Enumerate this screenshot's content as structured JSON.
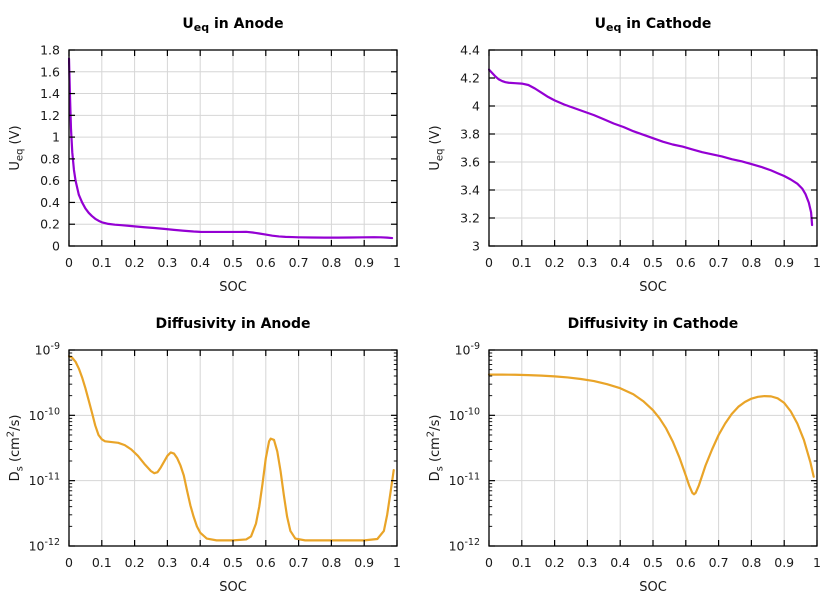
{
  "figure": {
    "background": "#ffffff",
    "style": {
      "grid_color": "#d6d6d6",
      "axis_color": "#000000",
      "text_color": "#1a1a1a",
      "purple": "#9400d3",
      "orange": "#e9a428"
    }
  },
  "chart_data": [
    {
      "id": "ueq-anode",
      "type": "line",
      "title_parts": [
        {
          "t": "U"
        },
        {
          "t": "eq",
          "shift": "sub"
        },
        {
          "t": " in Anode"
        }
      ],
      "title_text": "U_eq in Anode",
      "xlabel": "SOC",
      "ylabel_parts": [
        {
          "t": "U"
        },
        {
          "t": "eq",
          "shift": "sub"
        },
        {
          "t": " (V)"
        }
      ],
      "ylabel_text": "U_eq (V)",
      "xlim": [
        0,
        1
      ],
      "x_ticks": {
        "values": [
          0,
          0.1,
          0.2,
          0.3,
          0.4,
          0.5,
          0.6,
          0.7,
          0.8,
          0.9,
          1
        ],
        "labels": [
          "0",
          "0.1",
          "0.2",
          "0.3",
          "0.4",
          "0.5",
          "0.6",
          "0.7",
          "0.8",
          "0.9",
          "1"
        ]
      },
      "yscale": "linear",
      "ylim": [
        0,
        1.8
      ],
      "y_ticks": {
        "values": [
          0,
          0.2,
          0.4,
          0.6,
          0.8,
          1,
          1.2,
          1.4,
          1.6,
          1.8
        ],
        "labels": [
          "0",
          "0.2",
          "0.4",
          "0.6",
          "0.8",
          "1",
          "1.2",
          "1.4",
          "1.6",
          "1.8"
        ]
      },
      "grid": true,
      "line_color": "#9400d3",
      "points": [
        [
          0,
          1.72
        ],
        [
          0.003,
          1.38
        ],
        [
          0.006,
          1.08
        ],
        [
          0.01,
          0.86
        ],
        [
          0.015,
          0.7
        ],
        [
          0.02,
          0.6
        ],
        [
          0.03,
          0.47
        ],
        [
          0.04,
          0.4
        ],
        [
          0.05,
          0.345
        ],
        [
          0.06,
          0.305
        ],
        [
          0.07,
          0.275
        ],
        [
          0.08,
          0.25
        ],
        [
          0.09,
          0.232
        ],
        [
          0.1,
          0.218
        ],
        [
          0.12,
          0.203
        ],
        [
          0.14,
          0.196
        ],
        [
          0.16,
          0.191
        ],
        [
          0.18,
          0.186
        ],
        [
          0.2,
          0.18
        ],
        [
          0.23,
          0.172
        ],
        [
          0.26,
          0.165
        ],
        [
          0.29,
          0.157
        ],
        [
          0.32,
          0.148
        ],
        [
          0.35,
          0.14
        ],
        [
          0.38,
          0.133
        ],
        [
          0.4,
          0.13
        ],
        [
          0.44,
          0.129
        ],
        [
          0.48,
          0.129
        ],
        [
          0.52,
          0.129
        ],
        [
          0.54,
          0.13
        ],
        [
          0.56,
          0.124
        ],
        [
          0.58,
          0.115
        ],
        [
          0.6,
          0.105
        ],
        [
          0.62,
          0.095
        ],
        [
          0.64,
          0.088
        ],
        [
          0.66,
          0.084
        ],
        [
          0.68,
          0.082
        ],
        [
          0.7,
          0.08
        ],
        [
          0.74,
          0.078
        ],
        [
          0.78,
          0.077
        ],
        [
          0.82,
          0.077
        ],
        [
          0.86,
          0.078
        ],
        [
          0.9,
          0.08
        ],
        [
          0.93,
          0.081
        ],
        [
          0.95,
          0.08
        ],
        [
          0.97,
          0.077
        ],
        [
          0.985,
          0.073
        ]
      ]
    },
    {
      "id": "ueq-cathode",
      "type": "line",
      "title_parts": [
        {
          "t": "U"
        },
        {
          "t": "eq",
          "shift": "sub"
        },
        {
          "t": " in Cathode"
        }
      ],
      "title_text": "U_eq in Cathode",
      "xlabel": "SOC",
      "ylabel_parts": [
        {
          "t": "U"
        },
        {
          "t": "eq",
          "shift": "sub"
        },
        {
          "t": " (V)"
        }
      ],
      "ylabel_text": "U_eq (V)",
      "xlim": [
        0,
        1
      ],
      "x_ticks": {
        "values": [
          0,
          0.1,
          0.2,
          0.3,
          0.4,
          0.5,
          0.6,
          0.7,
          0.8,
          0.9,
          1
        ],
        "labels": [
          "0",
          "0.1",
          "0.2",
          "0.3",
          "0.4",
          "0.5",
          "0.6",
          "0.7",
          "0.8",
          "0.9",
          "1"
        ]
      },
      "yscale": "linear",
      "ylim": [
        3,
        4.4
      ],
      "y_ticks": {
        "values": [
          3,
          3.2,
          3.4,
          3.6,
          3.8,
          4,
          4.2,
          4.4
        ],
        "labels": [
          "3",
          "3.2",
          "3.4",
          "3.6",
          "3.8",
          "4",
          "4.2",
          "4.4"
        ]
      },
      "grid": true,
      "line_color": "#9400d3",
      "points": [
        [
          0,
          4.26
        ],
        [
          0.01,
          4.235
        ],
        [
          0.02,
          4.21
        ],
        [
          0.03,
          4.19
        ],
        [
          0.04,
          4.178
        ],
        [
          0.05,
          4.17
        ],
        [
          0.06,
          4.166
        ],
        [
          0.08,
          4.163
        ],
        [
          0.1,
          4.16
        ],
        [
          0.12,
          4.15
        ],
        [
          0.14,
          4.125
        ],
        [
          0.16,
          4.095
        ],
        [
          0.18,
          4.065
        ],
        [
          0.2,
          4.04
        ],
        [
          0.23,
          4.01
        ],
        [
          0.26,
          3.985
        ],
        [
          0.29,
          3.96
        ],
        [
          0.32,
          3.935
        ],
        [
          0.35,
          3.905
        ],
        [
          0.38,
          3.875
        ],
        [
          0.41,
          3.85
        ],
        [
          0.44,
          3.82
        ],
        [
          0.47,
          3.795
        ],
        [
          0.5,
          3.77
        ],
        [
          0.53,
          3.745
        ],
        [
          0.56,
          3.725
        ],
        [
          0.59,
          3.71
        ],
        [
          0.62,
          3.69
        ],
        [
          0.65,
          3.67
        ],
        [
          0.68,
          3.655
        ],
        [
          0.71,
          3.64
        ],
        [
          0.74,
          3.62
        ],
        [
          0.77,
          3.605
        ],
        [
          0.8,
          3.585
        ],
        [
          0.83,
          3.565
        ],
        [
          0.86,
          3.54
        ],
        [
          0.88,
          3.52
        ],
        [
          0.9,
          3.5
        ],
        [
          0.92,
          3.475
        ],
        [
          0.94,
          3.445
        ],
        [
          0.955,
          3.41
        ],
        [
          0.965,
          3.37
        ],
        [
          0.975,
          3.31
        ],
        [
          0.982,
          3.24
        ],
        [
          0.985,
          3.15
        ]
      ]
    },
    {
      "id": "diffusivity-anode",
      "type": "line",
      "title_parts": [
        {
          "t": "Diffusivity in Anode"
        }
      ],
      "title_text": "Diffusivity in Anode",
      "xlabel": "SOC",
      "ylabel_parts": [
        {
          "t": "D"
        },
        {
          "t": "s",
          "shift": "sub"
        },
        {
          "t": " (cm"
        },
        {
          "t": "2",
          "shift": "sup"
        },
        {
          "t": "/s)"
        }
      ],
      "ylabel_text": "D_s (cm^2/s)",
      "xlim": [
        0,
        1
      ],
      "x_ticks": {
        "values": [
          0,
          0.1,
          0.2,
          0.3,
          0.4,
          0.5,
          0.6,
          0.7,
          0.8,
          0.9,
          1
        ],
        "labels": [
          "0",
          "0.1",
          "0.2",
          "0.3",
          "0.4",
          "0.5",
          "0.6",
          "0.7",
          "0.8",
          "0.9",
          "1"
        ]
      },
      "yscale": "log",
      "ylim": [
        1e-12,
        1e-09
      ],
      "y_ticks": {
        "exponents": [
          -12,
          -11,
          -10,
          -9
        ]
      },
      "grid": true,
      "line_color": "#e9a428",
      "points": [
        [
          0,
          8e-10
        ],
        [
          0.01,
          7.6e-10
        ],
        [
          0.02,
          6.6e-10
        ],
        [
          0.03,
          5.2e-10
        ],
        [
          0.04,
          3.8e-10
        ],
        [
          0.05,
          2.6e-10
        ],
        [
          0.06,
          1.7e-10
        ],
        [
          0.07,
          1.1e-10
        ],
        [
          0.08,
          7e-11
        ],
        [
          0.09,
          5e-11
        ],
        [
          0.1,
          4.3e-11
        ],
        [
          0.11,
          4e-11
        ],
        [
          0.13,
          3.9e-11
        ],
        [
          0.15,
          3.8e-11
        ],
        [
          0.17,
          3.5e-11
        ],
        [
          0.19,
          3e-11
        ],
        [
          0.21,
          2.4e-11
        ],
        [
          0.23,
          1.8e-11
        ],
        [
          0.25,
          1.4e-11
        ],
        [
          0.26,
          1.3e-11
        ],
        [
          0.27,
          1.35e-11
        ],
        [
          0.28,
          1.6e-11
        ],
        [
          0.3,
          2.4e-11
        ],
        [
          0.31,
          2.7e-11
        ],
        [
          0.32,
          2.6e-11
        ],
        [
          0.33,
          2.2e-11
        ],
        [
          0.34,
          1.7e-11
        ],
        [
          0.35,
          1.2e-11
        ],
        [
          0.36,
          7e-12
        ],
        [
          0.37,
          4.2e-12
        ],
        [
          0.38,
          2.8e-12
        ],
        [
          0.39,
          2e-12
        ],
        [
          0.4,
          1.6e-12
        ],
        [
          0.42,
          1.3e-12
        ],
        [
          0.45,
          1.22e-12
        ],
        [
          0.5,
          1.22e-12
        ],
        [
          0.54,
          1.26e-12
        ],
        [
          0.555,
          1.4e-12
        ],
        [
          0.57,
          2.2e-12
        ],
        [
          0.58,
          4e-12
        ],
        [
          0.59,
          9e-12
        ],
        [
          0.6,
          2.2e-11
        ],
        [
          0.61,
          4e-11
        ],
        [
          0.615,
          4.4e-11
        ],
        [
          0.625,
          4.2e-11
        ],
        [
          0.635,
          2.8e-11
        ],
        [
          0.645,
          1.4e-11
        ],
        [
          0.655,
          6e-12
        ],
        [
          0.665,
          2.8e-12
        ],
        [
          0.675,
          1.7e-12
        ],
        [
          0.69,
          1.3e-12
        ],
        [
          0.72,
          1.22e-12
        ],
        [
          0.78,
          1.22e-12
        ],
        [
          0.84,
          1.22e-12
        ],
        [
          0.9,
          1.22e-12
        ],
        [
          0.94,
          1.28e-12
        ],
        [
          0.96,
          1.7e-12
        ],
        [
          0.97,
          3e-12
        ],
        [
          0.98,
          6.5e-12
        ],
        [
          0.99,
          1.45e-11
        ]
      ]
    },
    {
      "id": "diffusivity-cathode",
      "type": "line",
      "title_parts": [
        {
          "t": "Diffusivity in Cathode"
        }
      ],
      "title_text": "Diffusivity in Cathode",
      "xlabel": "SOC",
      "ylabel_parts": [
        {
          "t": "D"
        },
        {
          "t": "s",
          "shift": "sub"
        },
        {
          "t": " (cm"
        },
        {
          "t": "2",
          "shift": "sup"
        },
        {
          "t": "/s)"
        }
      ],
      "ylabel_text": "D_s (cm^2/s)",
      "xlim": [
        0,
        1
      ],
      "x_ticks": {
        "values": [
          0,
          0.1,
          0.2,
          0.3,
          0.4,
          0.5,
          0.6,
          0.7,
          0.8,
          0.9,
          1
        ],
        "labels": [
          "0",
          "0.1",
          "0.2",
          "0.3",
          "0.4",
          "0.5",
          "0.6",
          "0.7",
          "0.8",
          "0.9",
          "1"
        ]
      },
      "yscale": "log",
      "ylim": [
        1e-12,
        1e-09
      ],
      "y_ticks": {
        "exponents": [
          -12,
          -11,
          -10,
          -9
        ]
      },
      "grid": true,
      "line_color": "#e9a428",
      "points": [
        [
          0,
          4.2e-10
        ],
        [
          0.04,
          4.2e-10
        ],
        [
          0.08,
          4.18e-10
        ],
        [
          0.12,
          4.12e-10
        ],
        [
          0.16,
          4.05e-10
        ],
        [
          0.2,
          3.95e-10
        ],
        [
          0.24,
          3.8e-10
        ],
        [
          0.28,
          3.6e-10
        ],
        [
          0.32,
          3.35e-10
        ],
        [
          0.36,
          3e-10
        ],
        [
          0.4,
          2.6e-10
        ],
        [
          0.44,
          2.1e-10
        ],
        [
          0.47,
          1.65e-10
        ],
        [
          0.5,
          1.2e-10
        ],
        [
          0.52,
          9e-11
        ],
        [
          0.54,
          6.3e-11
        ],
        [
          0.56,
          4e-11
        ],
        [
          0.58,
          2.3e-11
        ],
        [
          0.6,
          1.2e-11
        ],
        [
          0.61,
          8.5e-12
        ],
        [
          0.62,
          6.5e-12
        ],
        [
          0.625,
          6.2e-12
        ],
        [
          0.63,
          6.5e-12
        ],
        [
          0.64,
          8.5e-12
        ],
        [
          0.65,
          1.2e-11
        ],
        [
          0.66,
          1.7e-11
        ],
        [
          0.68,
          3e-11
        ],
        [
          0.7,
          5e-11
        ],
        [
          0.72,
          7.5e-11
        ],
        [
          0.74,
          1.05e-10
        ],
        [
          0.76,
          1.35e-10
        ],
        [
          0.78,
          1.6e-10
        ],
        [
          0.8,
          1.8e-10
        ],
        [
          0.82,
          1.92e-10
        ],
        [
          0.84,
          1.97e-10
        ],
        [
          0.86,
          1.95e-10
        ],
        [
          0.88,
          1.82e-10
        ],
        [
          0.9,
          1.55e-10
        ],
        [
          0.92,
          1.15e-10
        ],
        [
          0.94,
          7.5e-11
        ],
        [
          0.96,
          4.2e-11
        ],
        [
          0.98,
          1.9e-11
        ],
        [
          0.99,
          1.15e-11
        ]
      ]
    }
  ]
}
